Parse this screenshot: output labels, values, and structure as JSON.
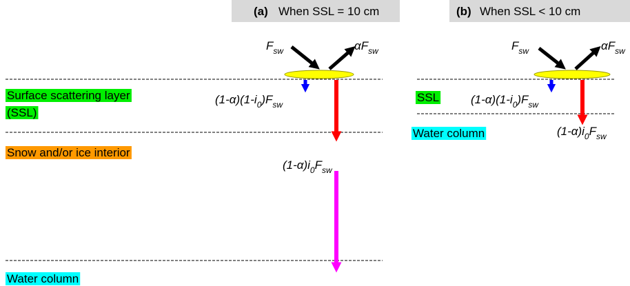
{
  "panel_a": {
    "label": "(a)",
    "title": "When SSL = 10 cm",
    "layers": {
      "ssl": [
        "Surface scattering layer",
        "(SSL)"
      ],
      "interior": "Snow and/or ice interior",
      "water": "Water column"
    },
    "fluxes": {
      "incoming": [
        "F",
        "sw"
      ],
      "reflected": [
        "αF",
        "sw"
      ],
      "ssl_absorbed": [
        "(1-α)(1-i",
        "0",
        ")F",
        "sw"
      ],
      "transmitted": [
        "(1-α)i",
        "0",
        "F",
        "sw"
      ]
    }
  },
  "panel_b": {
    "label": "(b)",
    "title": "When SSL < 10 cm",
    "layers": {
      "ssl": "SSL",
      "water": "Water column"
    },
    "fluxes": {
      "incoming": [
        "F",
        "sw"
      ],
      "reflected": [
        "αF",
        "sw"
      ],
      "ssl_absorbed": [
        "(1-α)(1-i",
        "0",
        ")F",
        "sw"
      ],
      "transmitted": [
        "(1-α)i",
        "0",
        "F",
        "sw"
      ]
    }
  }
}
